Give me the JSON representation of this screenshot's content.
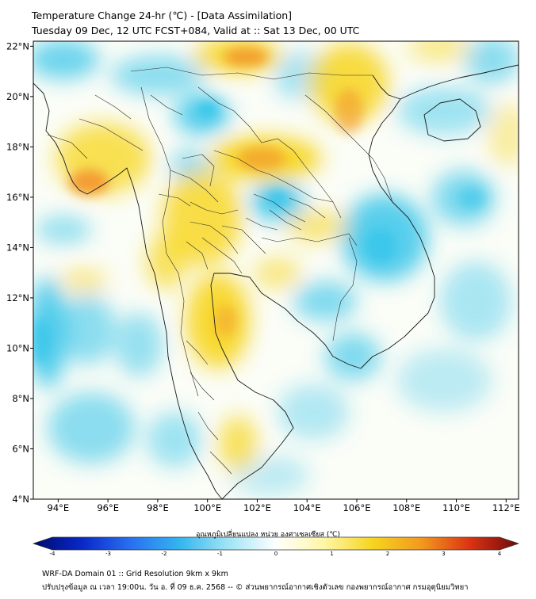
{
  "header": {
    "title_line1": "Temperature Change 24-hr (℃) - [Data Assimilation]",
    "title_line2": "Tuesday 09 Dec, 12 UTC FCST+084, Valid at :: Sat 13 Dec, 00 UTC"
  },
  "map": {
    "lon_range": [
      93,
      112.5
    ],
    "lat_range": [
      4,
      22.2
    ],
    "lon_ticks": [
      "94°E",
      "96°E",
      "98°E",
      "100°E",
      "102°E",
      "104°E",
      "106°E",
      "108°E",
      "110°E",
      "112°E"
    ],
    "lat_ticks": [
      "4°N",
      "6°N",
      "8°N",
      "10°N",
      "12°N",
      "14°N",
      "16°N",
      "18°N",
      "20°N",
      "22°N"
    ],
    "background_color": "#fbfdf7",
    "warm_color": "#f7d51c",
    "hot_color": "#f29a2e",
    "cool_color": "#2fc3ea"
  },
  "colorbar": {
    "title": "อุณหภูมิเปลี่ยนแปลง หน่วย องศาเซลเซียส (℃)",
    "tick_labels": [
      "-4",
      "-3",
      "-2",
      "-1",
      "0",
      "1",
      "2",
      "3",
      "4"
    ],
    "range": [
      -4,
      4
    ],
    "colors": [
      "#000a6e",
      "#0828c8",
      "#2a6ff0",
      "#33b4f0",
      "#9ee4f5",
      "#ffffff",
      "#fff6a6",
      "#f6d420",
      "#f19a1d",
      "#dc3214",
      "#6e0a0a"
    ]
  },
  "footer": {
    "line1": "WRF-DA Domain 01 :: Grid Resolution 9km x 9km",
    "line2": "ปรับปรุงข้อมูล ณ เวลา 19:00น. วัน อ. ที่ 09 ธ.ค. 2568 -- © ส่วนพยากรณ์อากาศเชิงตัวเลข กองพยากรณ์อากาศ กรมอุตุนิยมวิทยา"
  }
}
